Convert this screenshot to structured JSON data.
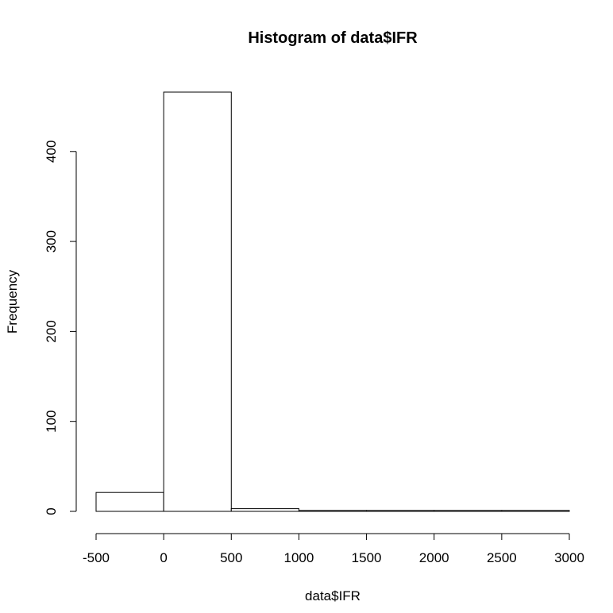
{
  "chart_data": {
    "type": "bar",
    "title": "Histogram of data$IFR",
    "xlabel": "data$IFR",
    "ylabel": "Frequency",
    "xlim": [
      -500,
      3000
    ],
    "ylim": [
      0,
      466
    ],
    "x_ticks": [
      -500,
      0,
      500,
      1000,
      1500,
      2000,
      2500,
      3000
    ],
    "y_ticks": [
      0,
      100,
      200,
      300,
      400
    ],
    "bins": [
      {
        "start": -500,
        "end": 0,
        "count": 21
      },
      {
        "start": 0,
        "end": 500,
        "count": 466
      },
      {
        "start": 500,
        "end": 1000,
        "count": 3
      },
      {
        "start": 1000,
        "end": 1500,
        "count": 1
      },
      {
        "start": 1500,
        "end": 2000,
        "count": 1
      },
      {
        "start": 2000,
        "end": 2500,
        "count": 1
      },
      {
        "start": 2500,
        "end": 3000,
        "count": 1
      }
    ],
    "grid": false,
    "legend": "none"
  }
}
